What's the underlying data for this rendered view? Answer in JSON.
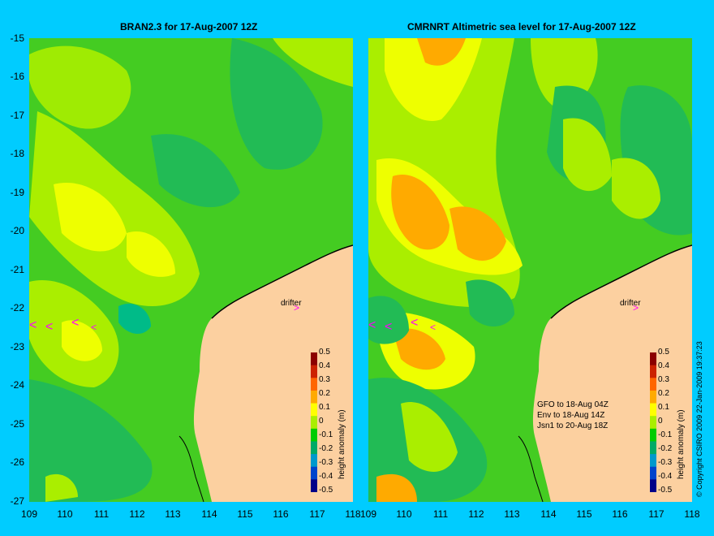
{
  "left_panel": {
    "title": "BRAN2.3 for 17-Aug-2007 12Z"
  },
  "right_panel": {
    "title": "CMRNRT Altimetric sea level  for 17-Aug-2007 12Z",
    "legend": [
      "GFO to 18-Aug 04Z",
      "Env to 18-Aug 14Z",
      "Jsn1 to 20-Aug 18Z"
    ]
  },
  "drifter_label": "drifter",
  "y_ticks": [
    "-15",
    "-16",
    "-17",
    "-18",
    "-19",
    "-20",
    "-21",
    "-22",
    "-23",
    "-24",
    "-25",
    "-26",
    "-27"
  ],
  "x_ticks": [
    "109",
    "110",
    "111",
    "112",
    "113",
    "114",
    "115",
    "116",
    "117",
    "118"
  ],
  "colorbar": {
    "title": "height anomaly (m)",
    "labels": [
      "0.5",
      "0.4",
      "0.3",
      "0.2",
      "0.1",
      "0",
      "-0.1",
      "-0.2",
      "-0.3",
      "-0.4",
      "-0.5"
    ],
    "colors": [
      "#8b0000",
      "#cc2200",
      "#ff6600",
      "#ffaa00",
      "#ffff00",
      "#aaee00",
      "#00cc00",
      "#00aa66",
      "#0099cc",
      "#0044cc",
      "#000088"
    ]
  },
  "copyright": "© Copyright CSIRO 2009   22-Jan-2009 19:37:23",
  "colors": {
    "background": "#00ccff",
    "land": "#fcd0a0",
    "drifter_arrow": "#ff00ff"
  }
}
